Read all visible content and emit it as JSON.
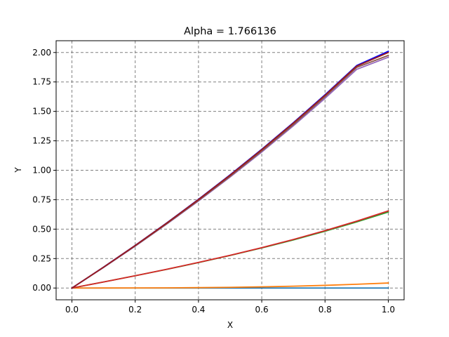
{
  "chart_data": {
    "type": "line",
    "title": "Alpha = 1.766136",
    "xlabel": "X",
    "ylabel": "Y",
    "xlim": [
      -0.05,
      1.05
    ],
    "ylim": [
      -0.1,
      2.1
    ],
    "grid": true,
    "legend": "none",
    "xticks": [
      0.0,
      0.2,
      0.4,
      0.6,
      0.8,
      1.0
    ],
    "xtick_labels": [
      "0.0",
      "0.2",
      "0.4",
      "0.6",
      "0.8",
      "1.0"
    ],
    "yticks": [
      0.0,
      0.25,
      0.5,
      0.75,
      1.0,
      1.25,
      1.5,
      1.75,
      2.0
    ],
    "ytick_labels": [
      "0.00",
      "0.25",
      "0.50",
      "0.75",
      "1.00",
      "1.25",
      "1.50",
      "1.75",
      "2.00"
    ],
    "x": [
      0.0,
      0.1,
      0.2,
      0.3,
      0.4,
      0.5,
      0.6,
      0.7,
      0.8,
      0.9,
      1.0
    ],
    "series": [
      {
        "color": "#1f77b4",
        "values": [
          0.0,
          0.0,
          0.0,
          0.0,
          0.0,
          0.0,
          0.0,
          0.0,
          0.0,
          0.0,
          0.0
        ]
      },
      {
        "color": "#ff7f0e",
        "values": [
          0.0,
          0.0001,
          0.0005,
          0.0014,
          0.0031,
          0.0058,
          0.0098,
          0.0153,
          0.0226,
          0.032,
          0.0425
        ]
      },
      {
        "color": "#2ca02c",
        "values": [
          0.0,
          0.0512,
          0.1039,
          0.1586,
          0.2158,
          0.2761,
          0.3401,
          0.4085,
          0.482,
          0.5612,
          0.645
        ]
      },
      {
        "color": "#d62728",
        "values": [
          0.0,
          0.0514,
          0.1045,
          0.1596,
          0.2173,
          0.2782,
          0.343,
          0.4124,
          0.4871,
          0.5679,
          0.655
        ]
      },
      {
        "color": "#9467bd",
        "values": [
          0.0,
          0.1745,
          0.3555,
          0.5435,
          0.739,
          0.9425,
          1.155,
          1.3775,
          1.611,
          1.8565,
          1.96
        ]
      },
      {
        "color": "#8c564b",
        "values": [
          0.0,
          0.1755,
          0.3575,
          0.547,
          0.744,
          0.949,
          1.1635,
          1.388,
          1.6245,
          1.873,
          1.975
        ]
      },
      {
        "color": "#0000ff",
        "values": [
          0.0,
          0.1778,
          0.3623,
          0.5539,
          0.7534,
          0.9612,
          1.1781,
          1.4044,
          1.6411,
          1.8891,
          2.01
        ]
      },
      {
        "color": "#9b1c1c",
        "values": [
          0.0,
          0.1772,
          0.3612,
          0.5523,
          0.7512,
          0.9584,
          1.1747,
          1.4004,
          1.6364,
          1.8836,
          2.0
        ]
      }
    ]
  }
}
